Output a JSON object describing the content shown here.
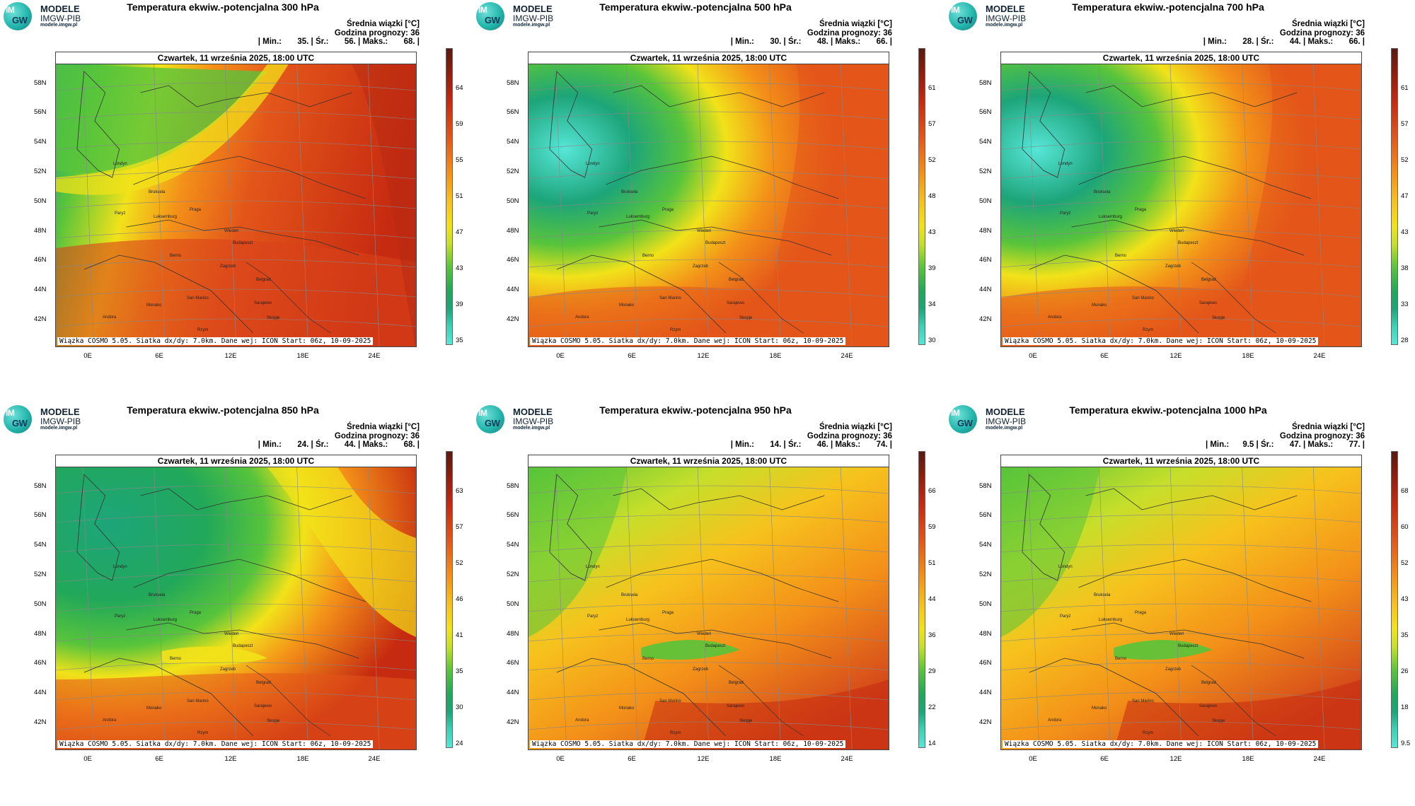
{
  "logo": {
    "line1": "MODELE",
    "line2": "IMGW-PIB",
    "line3": "modele.imgw.pl",
    "badge_top": "IM",
    "badge_bottom": "GW"
  },
  "panels": [
    {
      "title": "Temperatura ekwiw.-potencjalna 300 hPa",
      "mean_label": "Średnia wiązki [°C]",
      "forecast_hour": "Godzina prognozy: 36",
      "stats": "| Min.:       35. | Śr.:       56. | Maks.:       68. |",
      "date": "Czwartek, 11 września 2025, 18:00 UTC",
      "footer": "Wiązka COSMO 5.05. Siatka dx/dy: 7.0km. Dane wej: ICON Start: 06z, 10-09-2025",
      "colorbar_labels": [
        "64",
        "59",
        "55",
        "51",
        "47",
        "43",
        "39",
        "35"
      ],
      "style": "warm"
    },
    {
      "title": "Temperatura ekwiw.-potencjalna 500 hPa",
      "mean_label": "Średnia wiązki [°C]",
      "forecast_hour": "Godzina prognozy: 36",
      "stats": "| Min.:       30. | Śr.:       48. | Maks.:       66. |",
      "date": "Czwartek, 11 września 2025, 18:00 UTC",
      "footer": "Wiązka COSMO 5.05. Siatka dx/dy: 7.0km. Dane wej: ICON Start: 06z, 10-09-2025",
      "colorbar_labels": [
        "61",
        "57",
        "52",
        "48",
        "43",
        "39",
        "34",
        "30"
      ],
      "style": "west-cool"
    },
    {
      "title": "Temperatura ekwiw.-potencjalna 700 hPa",
      "mean_label": "Średnia wiązki [°C]",
      "forecast_hour": "Godzina prognozy: 36",
      "stats": "| Min.:       28. | Śr.:       44. | Maks.:       66. |",
      "date": "Czwartek, 11 września 2025, 18:00 UTC",
      "footer": "Wiązka COSMO 5.05. Siatka dx/dy: 7.0km. Dane wej: ICON Start: 06z, 10-09-2025",
      "colorbar_labels": [
        "61",
        "57",
        "52",
        "47",
        "43",
        "38",
        "33",
        "28"
      ],
      "style": "west-cool"
    },
    {
      "title": "Temperatura ekwiw.-potencjalna 850 hPa",
      "mean_label": "Średnia wiązki [°C]",
      "forecast_hour": "Godzina prognozy: 36",
      "stats": "| Min.:       24. | Śr.:       44. | Maks.:       68. |",
      "date": "Czwartek, 11 września 2025, 18:00 UTC",
      "footer": "Wiązka COSMO 5.05. Siatka dx/dy: 7.0km. Dane wej: ICON Start: 06z, 10-09-2025",
      "colorbar_labels": [
        "63",
        "57",
        "52",
        "46",
        "41",
        "35",
        "30",
        "24"
      ],
      "style": "nw-green"
    },
    {
      "title": "Temperatura ekwiw.-potencjalna 950 hPa",
      "mean_label": "Średnia wiązki [°C]",
      "forecast_hour": "Godzina prognozy: 36",
      "stats": "| Min.:       14. | Śr.:       46. | Maks.:       74. |",
      "date": "Czwartek, 11 września 2025, 18:00 UTC",
      "footer": "Wiązka COSMO 5.05. Siatka dx/dy: 7.0km. Dane wej: ICON Start: 06z, 10-09-2025",
      "colorbar_labels": [
        "66",
        "59",
        "51",
        "44",
        "36",
        "29",
        "22",
        "14"
      ],
      "style": "low"
    },
    {
      "title": "Temperatura ekwiw.-potencjalna 1000 hPa",
      "mean_label": "Średnia wiązki [°C]",
      "forecast_hour": "Godzina prognozy: 36",
      "stats": "| Min.:      9.5 | Śr.:       47. | Maks.:       77. |",
      "date": "Czwartek, 11 września 2025, 18:00 UTC",
      "footer": "Wiązka COSMO 5.05. Siatka dx/dy: 7.0km. Dane wej: ICON Start: 06z, 10-09-2025",
      "colorbar_labels": [
        "68",
        "60",
        "52",
        "43",
        "35",
        "26",
        "18",
        "9.5"
      ],
      "style": "low"
    }
  ],
  "lat_labels": [
    "58N",
    "56N",
    "54N",
    "52N",
    "50N",
    "48N",
    "46N",
    "44N",
    "42N"
  ],
  "lon_labels": [
    "0E",
    "6E",
    "12E",
    "18E",
    "24E"
  ],
  "cities": [
    "Londyn",
    "Bruksela",
    "Paryż",
    "Luksemburg",
    "Praga",
    "Wiedeń",
    "Budapeszt",
    "Berno",
    "Zagrzeb",
    "Belgrad",
    "San Marino",
    "Sarajewo",
    "Monako",
    "Andora",
    "Skopje",
    "Rzym"
  ],
  "colors": {
    "hot": "#c62a10",
    "warm": "#e3561a",
    "orange": "#f39019",
    "yellow": "#f2e21a",
    "green": "#58c43b",
    "teal": "#1da57a",
    "cyan": "#57e6d8",
    "dark": "#5a1a10"
  }
}
